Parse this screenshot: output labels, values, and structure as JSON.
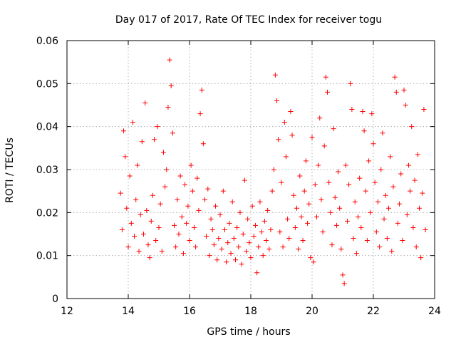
{
  "chart_data": {
    "type": "scatter",
    "title": "Day 017 of 2017, Rate Of TEC Index for receiver togu",
    "xlabel": "GPS time / hours",
    "ylabel": "ROTI / TECUs",
    "xlim": [
      12,
      24
    ],
    "ylim": [
      0,
      0.06
    ],
    "xticks": [
      "12",
      "14",
      "16",
      "18",
      "20",
      "22",
      "24"
    ],
    "yticks": [
      "0",
      "0.01",
      "0.02",
      "0.03",
      "0.04",
      "0.05",
      "0.06"
    ],
    "grid": true,
    "marker": "plus",
    "color": "#ff0000",
    "points": [
      [
        13.75,
        0.0245
      ],
      [
        13.8,
        0.016
      ],
      [
        13.85,
        0.039
      ],
      [
        13.9,
        0.033
      ],
      [
        13.95,
        0.021
      ],
      [
        14.0,
        0.012
      ],
      [
        14.05,
        0.0285
      ],
      [
        14.1,
        0.0175
      ],
      [
        14.15,
        0.041
      ],
      [
        14.2,
        0.0145
      ],
      [
        14.25,
        0.023
      ],
      [
        14.3,
        0.031
      ],
      [
        14.35,
        0.011
      ],
      [
        14.4,
        0.0195
      ],
      [
        14.45,
        0.0365
      ],
      [
        14.5,
        0.015
      ],
      [
        14.55,
        0.0455
      ],
      [
        14.6,
        0.0205
      ],
      [
        14.65,
        0.0125
      ],
      [
        14.7,
        0.0095
      ],
      [
        14.75,
        0.018
      ],
      [
        14.8,
        0.024
      ],
      [
        14.85,
        0.037
      ],
      [
        14.9,
        0.0135
      ],
      [
        14.95,
        0.04
      ],
      [
        15.0,
        0.0165
      ],
      [
        15.05,
        0.022
      ],
      [
        15.1,
        0.011
      ],
      [
        15.15,
        0.034
      ],
      [
        15.2,
        0.026
      ],
      [
        15.25,
        0.03
      ],
      [
        15.3,
        0.0445
      ],
      [
        15.35,
        0.0555
      ],
      [
        15.4,
        0.0495
      ],
      [
        15.45,
        0.0385
      ],
      [
        15.5,
        0.017
      ],
      [
        15.55,
        0.012
      ],
      [
        15.6,
        0.023
      ],
      [
        15.65,
        0.015
      ],
      [
        15.7,
        0.0285
      ],
      [
        15.75,
        0.019
      ],
      [
        15.8,
        0.0105
      ],
      [
        15.85,
        0.0265
      ],
      [
        15.9,
        0.0175
      ],
      [
        15.95,
        0.0215
      ],
      [
        16.0,
        0.0135
      ],
      [
        16.05,
        0.031
      ],
      [
        16.1,
        0.025
      ],
      [
        16.15,
        0.0165
      ],
      [
        16.2,
        0.012
      ],
      [
        16.25,
        0.028
      ],
      [
        16.3,
        0.0205
      ],
      [
        16.35,
        0.043
      ],
      [
        16.4,
        0.0485
      ],
      [
        16.45,
        0.036
      ],
      [
        16.5,
        0.023
      ],
      [
        16.55,
        0.0145
      ],
      [
        16.6,
        0.0255
      ],
      [
        16.65,
        0.01
      ],
      [
        16.7,
        0.0185
      ],
      [
        16.75,
        0.016
      ],
      [
        16.8,
        0.0125
      ],
      [
        16.85,
        0.0215
      ],
      [
        16.9,
        0.009
      ],
      [
        16.95,
        0.014
      ],
      [
        17.0,
        0.0195
      ],
      [
        17.05,
        0.0115
      ],
      [
        17.1,
        0.025
      ],
      [
        17.15,
        0.016
      ],
      [
        17.2,
        0.0085
      ],
      [
        17.25,
        0.013
      ],
      [
        17.3,
        0.0175
      ],
      [
        17.35,
        0.0105
      ],
      [
        17.4,
        0.0225
      ],
      [
        17.45,
        0.014
      ],
      [
        17.5,
        0.009
      ],
      [
        17.55,
        0.0165
      ],
      [
        17.6,
        0.012
      ],
      [
        17.65,
        0.02
      ],
      [
        17.7,
        0.008
      ],
      [
        17.75,
        0.015
      ],
      [
        17.8,
        0.0275
      ],
      [
        17.85,
        0.011
      ],
      [
        17.9,
        0.0185
      ],
      [
        17.95,
        0.013
      ],
      [
        18.0,
        0.0095
      ],
      [
        18.05,
        0.0215
      ],
      [
        18.1,
        0.0145
      ],
      [
        18.15,
        0.017
      ],
      [
        18.2,
        0.006
      ],
      [
        18.25,
        0.012
      ],
      [
        18.3,
        0.0225
      ],
      [
        18.35,
        0.0155
      ],
      [
        18.4,
        0.01
      ],
      [
        18.45,
        0.018
      ],
      [
        18.5,
        0.0135
      ],
      [
        18.55,
        0.0205
      ],
      [
        18.6,
        0.0115
      ],
      [
        18.65,
        0.016
      ],
      [
        18.7,
        0.025
      ],
      [
        18.75,
        0.03
      ],
      [
        18.8,
        0.052
      ],
      [
        18.85,
        0.046
      ],
      [
        18.9,
        0.037
      ],
      [
        18.95,
        0.0155
      ],
      [
        19.0,
        0.027
      ],
      [
        19.05,
        0.012
      ],
      [
        19.1,
        0.041
      ],
      [
        19.15,
        0.033
      ],
      [
        19.2,
        0.0185
      ],
      [
        19.25,
        0.014
      ],
      [
        19.3,
        0.0435
      ],
      [
        19.35,
        0.038
      ],
      [
        19.4,
        0.024
      ],
      [
        19.45,
        0.0165
      ],
      [
        19.5,
        0.021
      ],
      [
        19.55,
        0.0115
      ],
      [
        19.6,
        0.0285
      ],
      [
        19.65,
        0.019
      ],
      [
        19.7,
        0.0135
      ],
      [
        19.75,
        0.025
      ],
      [
        19.8,
        0.032
      ],
      [
        19.85,
        0.0175
      ],
      [
        19.9,
        0.022
      ],
      [
        19.95,
        0.0095
      ],
      [
        20.0,
        0.0375
      ],
      [
        20.05,
        0.0085
      ],
      [
        20.1,
        0.0265
      ],
      [
        20.15,
        0.019
      ],
      [
        20.2,
        0.031
      ],
      [
        20.25,
        0.042
      ],
      [
        20.3,
        0.023
      ],
      [
        20.35,
        0.0155
      ],
      [
        20.4,
        0.0355
      ],
      [
        20.45,
        0.0515
      ],
      [
        20.5,
        0.048
      ],
      [
        20.55,
        0.027
      ],
      [
        20.6,
        0.02
      ],
      [
        20.65,
        0.0125
      ],
      [
        20.7,
        0.0395
      ],
      [
        20.75,
        0.0235
      ],
      [
        20.8,
        0.017
      ],
      [
        20.85,
        0.0295
      ],
      [
        20.9,
        0.021
      ],
      [
        20.95,
        0.0115
      ],
      [
        21.0,
        0.0055
      ],
      [
        21.05,
        0.0035
      ],
      [
        21.1,
        0.031
      ],
      [
        21.15,
        0.018
      ],
      [
        21.2,
        0.0265
      ],
      [
        21.25,
        0.05
      ],
      [
        21.3,
        0.044
      ],
      [
        21.35,
        0.014
      ],
      [
        21.4,
        0.0225
      ],
      [
        21.45,
        0.0105
      ],
      [
        21.5,
        0.019
      ],
      [
        21.55,
        0.028
      ],
      [
        21.6,
        0.0165
      ],
      [
        21.65,
        0.0435
      ],
      [
        21.7,
        0.039
      ],
      [
        21.75,
        0.025
      ],
      [
        21.8,
        0.0135
      ],
      [
        21.85,
        0.032
      ],
      [
        21.9,
        0.02
      ],
      [
        21.95,
        0.043
      ],
      [
        22.0,
        0.036
      ],
      [
        22.05,
        0.027
      ],
      [
        22.1,
        0.0155
      ],
      [
        22.15,
        0.0225
      ],
      [
        22.2,
        0.012
      ],
      [
        22.25,
        0.03
      ],
      [
        22.3,
        0.0385
      ],
      [
        22.35,
        0.0185
      ],
      [
        22.4,
        0.024
      ],
      [
        22.45,
        0.014
      ],
      [
        22.5,
        0.021
      ],
      [
        22.55,
        0.033
      ],
      [
        22.6,
        0.011
      ],
      [
        22.65,
        0.026
      ],
      [
        22.7,
        0.0515
      ],
      [
        22.75,
        0.048
      ],
      [
        22.8,
        0.0175
      ],
      [
        22.85,
        0.022
      ],
      [
        22.9,
        0.029
      ],
      [
        22.95,
        0.0135
      ],
      [
        23.0,
        0.0485
      ],
      [
        23.05,
        0.045
      ],
      [
        23.1,
        0.0195
      ],
      [
        23.15,
        0.031
      ],
      [
        23.2,
        0.025
      ],
      [
        23.25,
        0.04
      ],
      [
        23.3,
        0.0165
      ],
      [
        23.35,
        0.0275
      ],
      [
        23.4,
        0.012
      ],
      [
        23.45,
        0.0335
      ],
      [
        23.5,
        0.021
      ],
      [
        23.55,
        0.0095
      ],
      [
        23.6,
        0.0245
      ],
      [
        23.65,
        0.044
      ],
      [
        23.7,
        0.016
      ]
    ]
  }
}
